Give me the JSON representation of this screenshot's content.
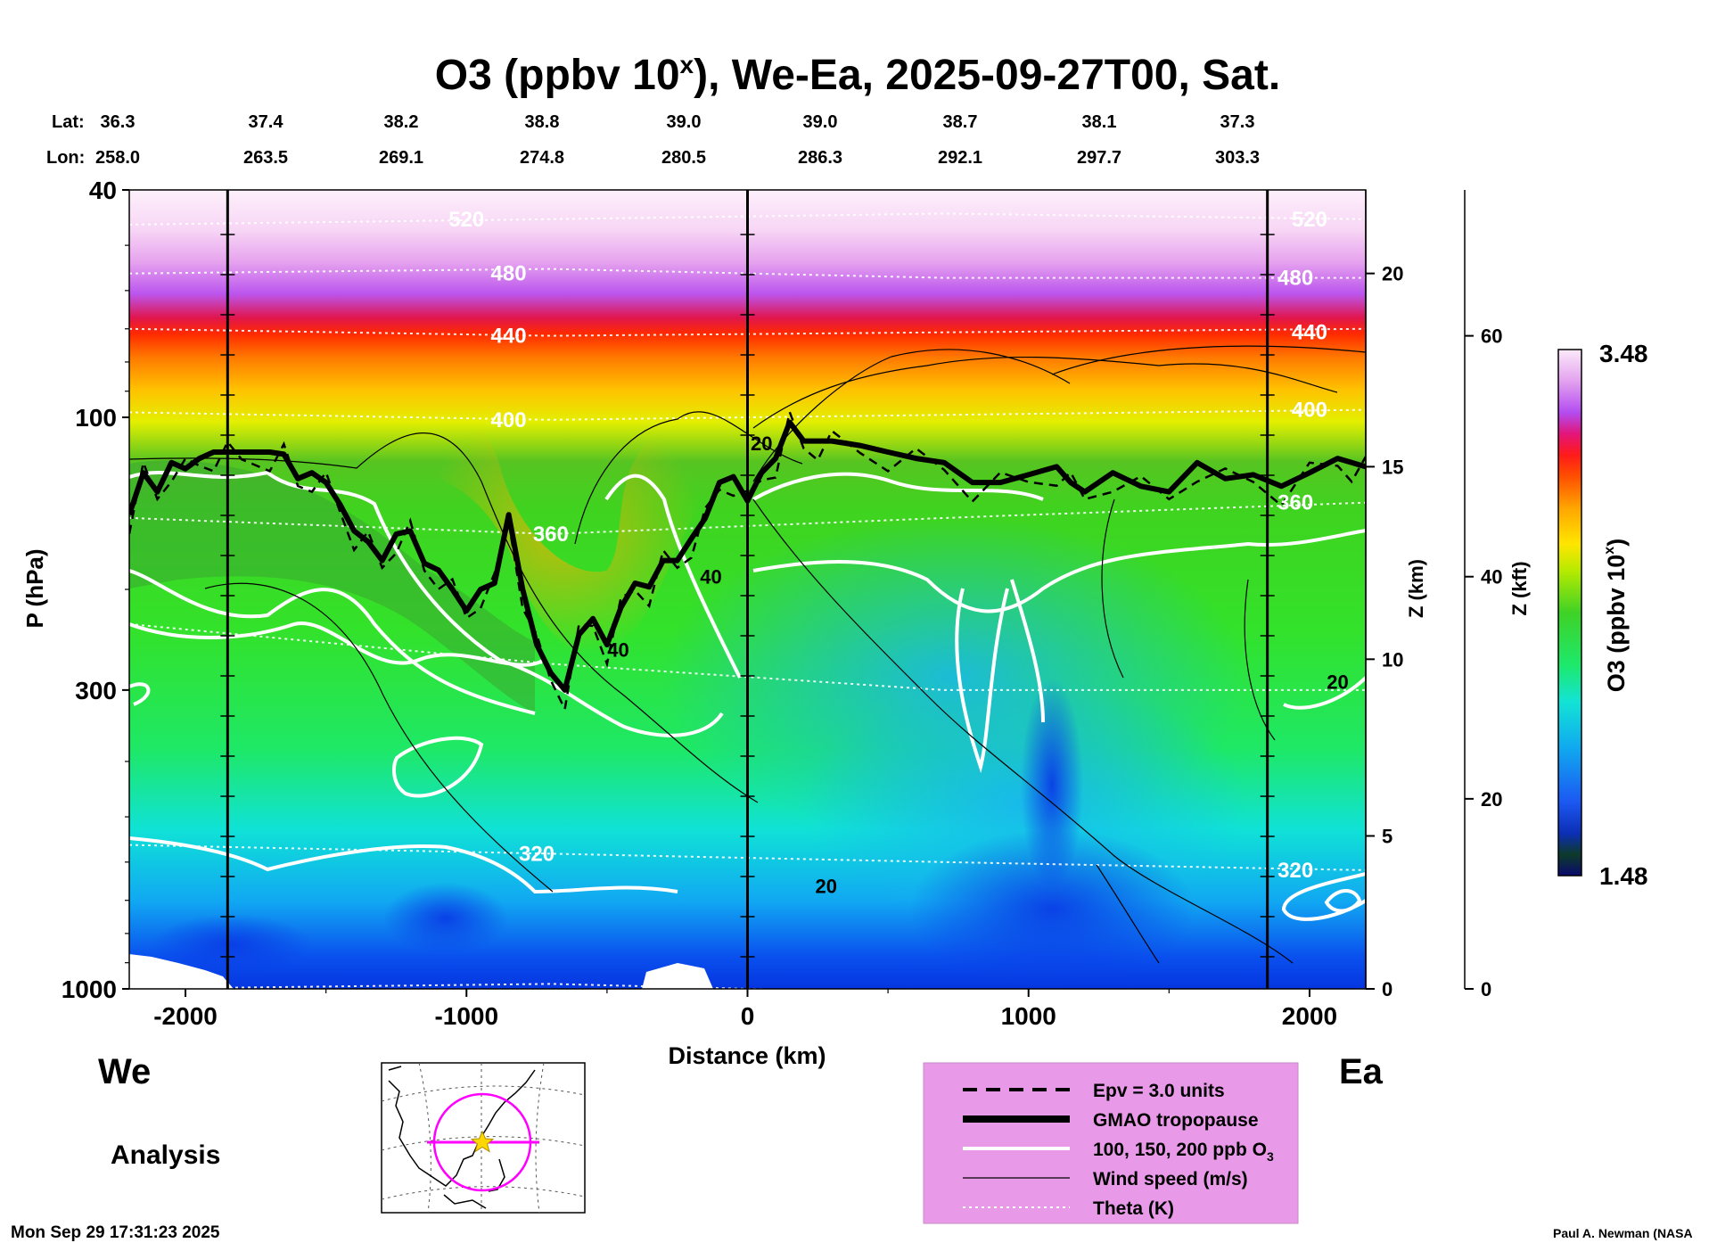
{
  "chart_data": {
    "type": "heatmap",
    "title_main": "O3 (ppbv 10",
    "title_sup": "x",
    "title_rest": "), We-Ea, 2025-09-27T00, Sat.",
    "lat_label": "Lat:",
    "lon_label": "Lon:",
    "cross_section": {
      "lat": [
        "36.3",
        "37.4",
        "38.2",
        "38.8",
        "39.0",
        "39.0",
        "38.7",
        "38.1",
        "37.3"
      ],
      "lon": [
        "258.0",
        "263.5",
        "269.1",
        "274.8",
        "280.5",
        "286.3",
        "292.1",
        "297.7",
        "303.3"
      ],
      "distance_km": [
        -2200,
        -1650,
        -1100,
        -550,
        0,
        550,
        1100,
        1650,
        2200
      ]
    },
    "xlabel": "Distance (km)",
    "xlim": [
      -2200,
      2200
    ],
    "xticks": [
      -2000,
      -1000,
      0,
      1000,
      2000
    ],
    "xtick_labels": [
      "-2000",
      "-1000",
      "0",
      "1000",
      "2000"
    ],
    "ylabel": "P (hPa)",
    "ylim": [
      1000,
      40
    ],
    "yscale": "log",
    "yticks": [
      40,
      100,
      300,
      1000
    ],
    "ytick_labels": [
      "40",
      "100",
      "300",
      "1000"
    ],
    "z_km_label": "Z (km)",
    "z_km_ticks": [
      {
        "label": "0",
        "p": 1000
      },
      {
        "label": "5",
        "p": 540
      },
      {
        "label": "10",
        "p": 265
      },
      {
        "label": "15",
        "p": 122
      },
      {
        "label": "20",
        "p": 56
      }
    ],
    "z_kft_label": "Z (kft)",
    "z_kft_ticks": [
      {
        "label": "0",
        "p": 1000
      },
      {
        "label": "20",
        "p": 465
      },
      {
        "label": "40",
        "p": 190
      },
      {
        "label": "60",
        "p": 72
      }
    ],
    "colorbar": {
      "label": "O3 (ppbv 10",
      "sup": "x",
      "close": ")",
      "min": "1.48",
      "max": "3.48"
    },
    "theta_labels": [
      {
        "text": "520",
        "x": -1000,
        "p": 45
      },
      {
        "text": "480",
        "x": -850,
        "p": 56
      },
      {
        "text": "440",
        "x": -850,
        "p": 72
      },
      {
        "text": "400",
        "x": -850,
        "p": 101
      },
      {
        "text": "360",
        "x": -700,
        "p": 160
      },
      {
        "text": "320",
        "x": -750,
        "p": 580
      },
      {
        "text": "520",
        "x": 2000,
        "p": 45
      },
      {
        "text": "480",
        "x": 1950,
        "p": 57
      },
      {
        "text": "440",
        "x": 2000,
        "p": 71
      },
      {
        "text": "400",
        "x": 2000,
        "p": 97
      },
      {
        "text": "360",
        "x": 1950,
        "p": 141
      },
      {
        "text": "320",
        "x": 1950,
        "p": 620
      }
    ],
    "wind_labels": [
      {
        "text": "40",
        "x": -130,
        "p": 190
      },
      {
        "text": "40",
        "x": -460,
        "p": 255
      },
      {
        "text": "20",
        "x": 50,
        "p": 111
      },
      {
        "text": "20",
        "x": 280,
        "p": 660
      },
      {
        "text": "20",
        "x": 2100,
        "p": 290
      }
    ],
    "tropopause": {
      "x": [
        -2200,
        -2150,
        -2100,
        -2050,
        -2000,
        -1950,
        -1900,
        -1850,
        -1800,
        -1700,
        -1650,
        -1600,
        -1550,
        -1500,
        -1450,
        -1400,
        -1350,
        -1300,
        -1250,
        -1200,
        -1150,
        -1100,
        -1050,
        -1000,
        -950,
        -900,
        -850,
        -800,
        -750,
        -700,
        -650,
        -600,
        -550,
        -500,
        -450,
        -400,
        -350,
        -300,
        -250,
        -200,
        -150,
        -100,
        -50,
        0,
        50,
        100,
        150,
        200,
        250,
        300,
        400,
        500,
        600,
        700,
        800,
        900,
        1000,
        1100,
        1150,
        1200,
        1300,
        1400,
        1500,
        1600,
        1700,
        1800,
        1900,
        2000,
        2100,
        2150,
        2200
      ],
      "p": [
        148,
        125,
        135,
        120,
        123,
        118,
        115,
        115,
        115,
        115,
        116,
        128,
        125,
        130,
        142,
        158,
        165,
        178,
        160,
        158,
        180,
        185,
        200,
        218,
        200,
        195,
        148,
        200,
        250,
        280,
        300,
        240,
        225,
        250,
        215,
        195,
        198,
        178,
        178,
        163,
        150,
        130,
        127,
        140,
        125,
        118,
        102,
        110,
        110,
        110,
        112,
        115,
        118,
        120,
        130,
        130,
        126,
        122,
        130,
        135,
        125,
        132,
        135,
        120,
        128,
        126,
        132,
        125,
        118,
        120,
        122
      ]
    },
    "legend": [
      {
        "style": "dashed",
        "label": "Epv = 3.0 units"
      },
      {
        "style": "thick",
        "label": "GMAO tropopause"
      },
      {
        "style": "white",
        "label": "100, 150, 200 ppb O",
        "sub": "3"
      },
      {
        "style": "thin",
        "label": "Wind speed (m/s)"
      },
      {
        "style": "dotted",
        "label": "Theta (K)"
      }
    ],
    "direction_left": "We",
    "direction_right": "Ea",
    "analysis_label": "Analysis",
    "timestamp": "Mon Sep 29 17:31:23 2025",
    "credit": "Paul A. Newman (NASA"
  }
}
